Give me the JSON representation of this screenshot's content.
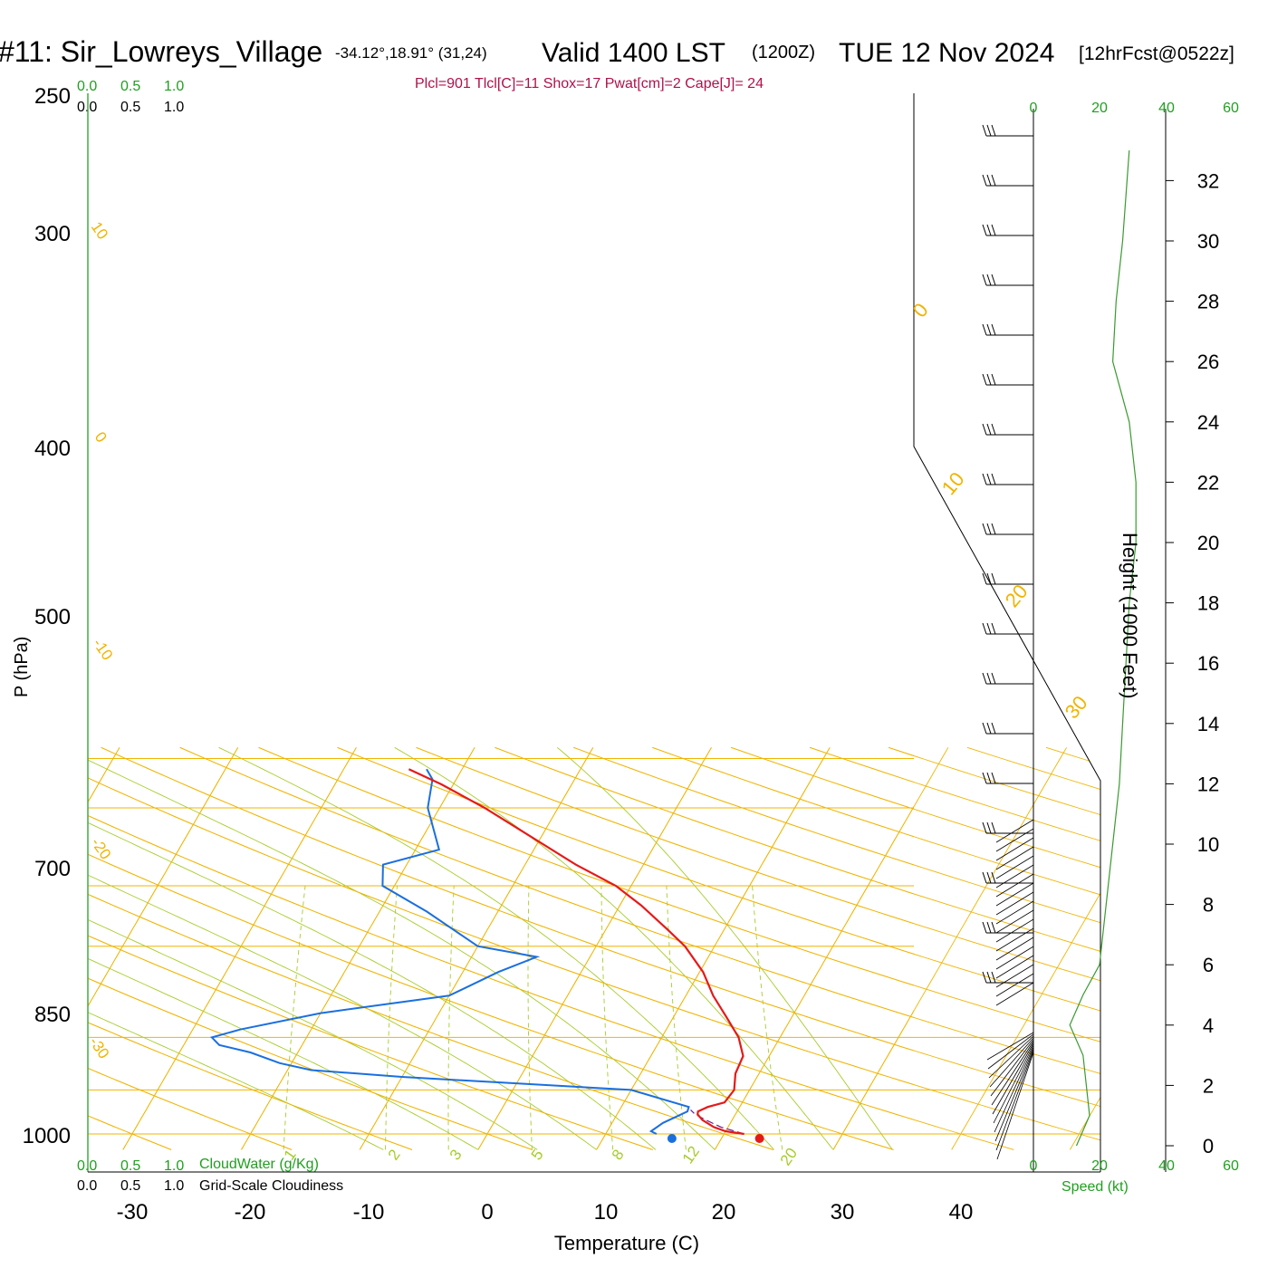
{
  "header": {
    "station": "#11: Sir_Lowreys_Village",
    "coords": "-34.12°,18.91° (31,24)",
    "valid": "Valid 1400 LST",
    "utc": "(1200Z)",
    "date": "TUE 12 Nov 2024",
    "forecast": "[12hrFcst@0522z]"
  },
  "indices": "Plcl=901 Tlcl[C]=11 Shox=17 Pwat[cm]=2 Cape[J]= 24",
  "colors": {
    "temperature": "#e61919",
    "dewpoint": "#1a6fe0",
    "isotherm": "#f0b400",
    "dry_adiabat": "#f0b400",
    "moist_adiabat": "#a6cc2a",
    "mixing_ratio": "#a6cc2a",
    "parcel": "#6a1a8a",
    "wind_profile": "#3a9a30",
    "indices_text": "#b0104a",
    "green_text": "#1fa01f"
  },
  "scales": {
    "cloud_top": [
      "0.0",
      "0.5",
      "1.0"
    ],
    "cloud_top2": [
      "0.0",
      "0.5",
      "1.0"
    ],
    "cloud_bottom": [
      "0.0",
      "0.5",
      "1.0"
    ],
    "cloud_bottom_label": "CloudWater (g/Kg)",
    "cloudiness_bottom": [
      "0.0",
      "0.5",
      "1.0"
    ],
    "cloudiness_label": "Grid-Scale Cloudiness",
    "speed_ticks": [
      "0",
      "20",
      "40",
      "60"
    ],
    "speed_label": "Speed (kt)"
  },
  "chart_data": {
    "type": "line",
    "title": "#11: Sir_Lowreys_Village",
    "xlabel": "Temperature (C)",
    "ylabel": "P (hPa)",
    "y2label": "Height (1000 Feet)",
    "x_ticks": [
      "-30",
      "-20",
      "-10",
      "0",
      "10",
      "20",
      "30",
      "40"
    ],
    "p_ticks": [
      "250",
      "300",
      "400",
      "500",
      "700",
      "850",
      "1000"
    ],
    "height_ticks": [
      "0",
      "2",
      "4",
      "6",
      "8",
      "10",
      "12",
      "14",
      "16",
      "18",
      "20",
      "22",
      "24",
      "26",
      "28",
      "30",
      "32"
    ],
    "isotherm_labels": [
      "10",
      "0",
      "-10",
      "-20",
      "-30",
      "0",
      "10",
      "20",
      "30"
    ],
    "mixing_labels": [
      "1",
      "2",
      "3",
      "5",
      "8",
      "12",
      "20"
    ],
    "series": [
      {
        "name": "Temperature",
        "points": [
          [
            1000,
            21.7
          ],
          [
            990,
            20
          ],
          [
            975,
            18.8
          ],
          [
            950,
            17.5
          ],
          [
            930,
            16.8
          ],
          [
            920,
            16.7
          ],
          [
            905,
            17.3
          ],
          [
            890,
            18.5
          ],
          [
            850,
            18.7
          ],
          [
            800,
            18
          ],
          [
            750,
            17.8
          ],
          [
            700,
            16.5
          ],
          [
            650,
            14.5
          ],
          [
            600,
            12.3
          ],
          [
            550,
            10.3
          ],
          [
            500,
            7.5
          ],
          [
            470,
            5.2
          ],
          [
            430,
            1.8
          ],
          [
            400,
            -1.3
          ],
          [
            370,
            -5.7
          ],
          [
            300,
            -16.2
          ],
          [
            275,
            -21
          ],
          [
            260,
            -24.5
          ]
        ]
      },
      {
        "name": "Dewpoint",
        "points": [
          [
            1000,
            14.3
          ],
          [
            990,
            13.7
          ],
          [
            960,
            14.3
          ],
          [
            920,
            15.8
          ],
          [
            905,
            15.7
          ],
          [
            850,
            10
          ],
          [
            810,
            -10
          ],
          [
            790,
            -18
          ],
          [
            770,
            -21
          ],
          [
            740,
            -24
          ],
          [
            720,
            -27
          ],
          [
            700,
            -28
          ],
          [
            680,
            -26
          ],
          [
            640,
            -20
          ],
          [
            600,
            -10
          ],
          [
            550,
            -7
          ],
          [
            520,
            -4.5
          ],
          [
            500,
            -10
          ],
          [
            440,
            -16
          ],
          [
            400,
            -21
          ],
          [
            370,
            -22
          ],
          [
            350,
            -18
          ],
          [
            300,
            -21
          ],
          [
            270,
            -22
          ],
          [
            260,
            -23
          ]
        ]
      }
    ],
    "surface_markers": {
      "temperature": 23,
      "dewpoint": 15.6
    },
    "wind_speed_profile_kt": [
      [
        0,
        13
      ],
      [
        1,
        17
      ],
      [
        2,
        16
      ],
      [
        3,
        15
      ],
      [
        4,
        11
      ],
      [
        5,
        15
      ],
      [
        6,
        20
      ],
      [
        8,
        22
      ],
      [
        10,
        24
      ],
      [
        12,
        26
      ],
      [
        14,
        27
      ],
      [
        16,
        28
      ],
      [
        18,
        29
      ],
      [
        20,
        31
      ],
      [
        22,
        31
      ],
      [
        24,
        29
      ],
      [
        26,
        24
      ],
      [
        28,
        25
      ],
      [
        30,
        27
      ],
      [
        33,
        29
      ]
    ]
  }
}
